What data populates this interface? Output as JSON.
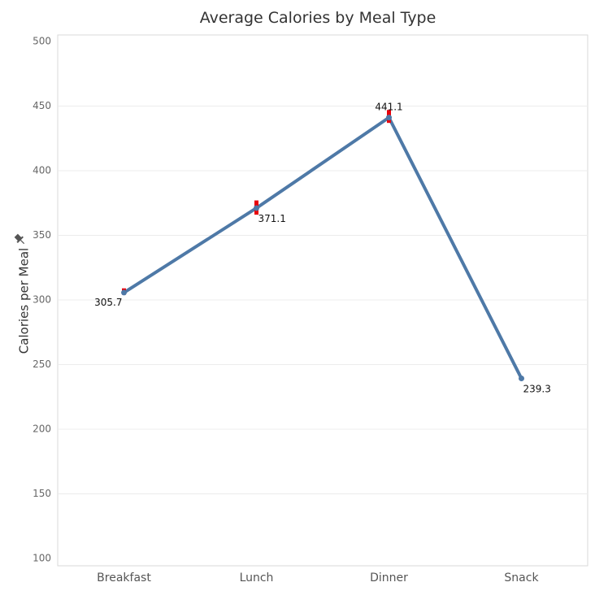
{
  "chart_data": {
    "type": "line",
    "title": "Average Calories by Meal Type",
    "ylabel": "Calories per Meal",
    "xlabel": "",
    "ylim": [
      100,
      500
    ],
    "yticks": [
      100,
      150,
      200,
      250,
      300,
      350,
      400,
      450,
      500
    ],
    "grid": true,
    "categories": [
      "Breakfast",
      "Lunch",
      "Dinner",
      "Snack"
    ],
    "series": [
      {
        "values": [
          305.7,
          371.1,
          441.1,
          239.3
        ],
        "labels": [
          "305.7",
          "371.1",
          "441.1",
          "239.3"
        ],
        "color": "#4e79a7",
        "error_low": [
          304,
          366,
          437,
          null
        ],
        "error_high": [
          309,
          377,
          447,
          null
        ],
        "error_color": "#e8000b"
      }
    ],
    "ylabel_icon": "pin-icon"
  }
}
